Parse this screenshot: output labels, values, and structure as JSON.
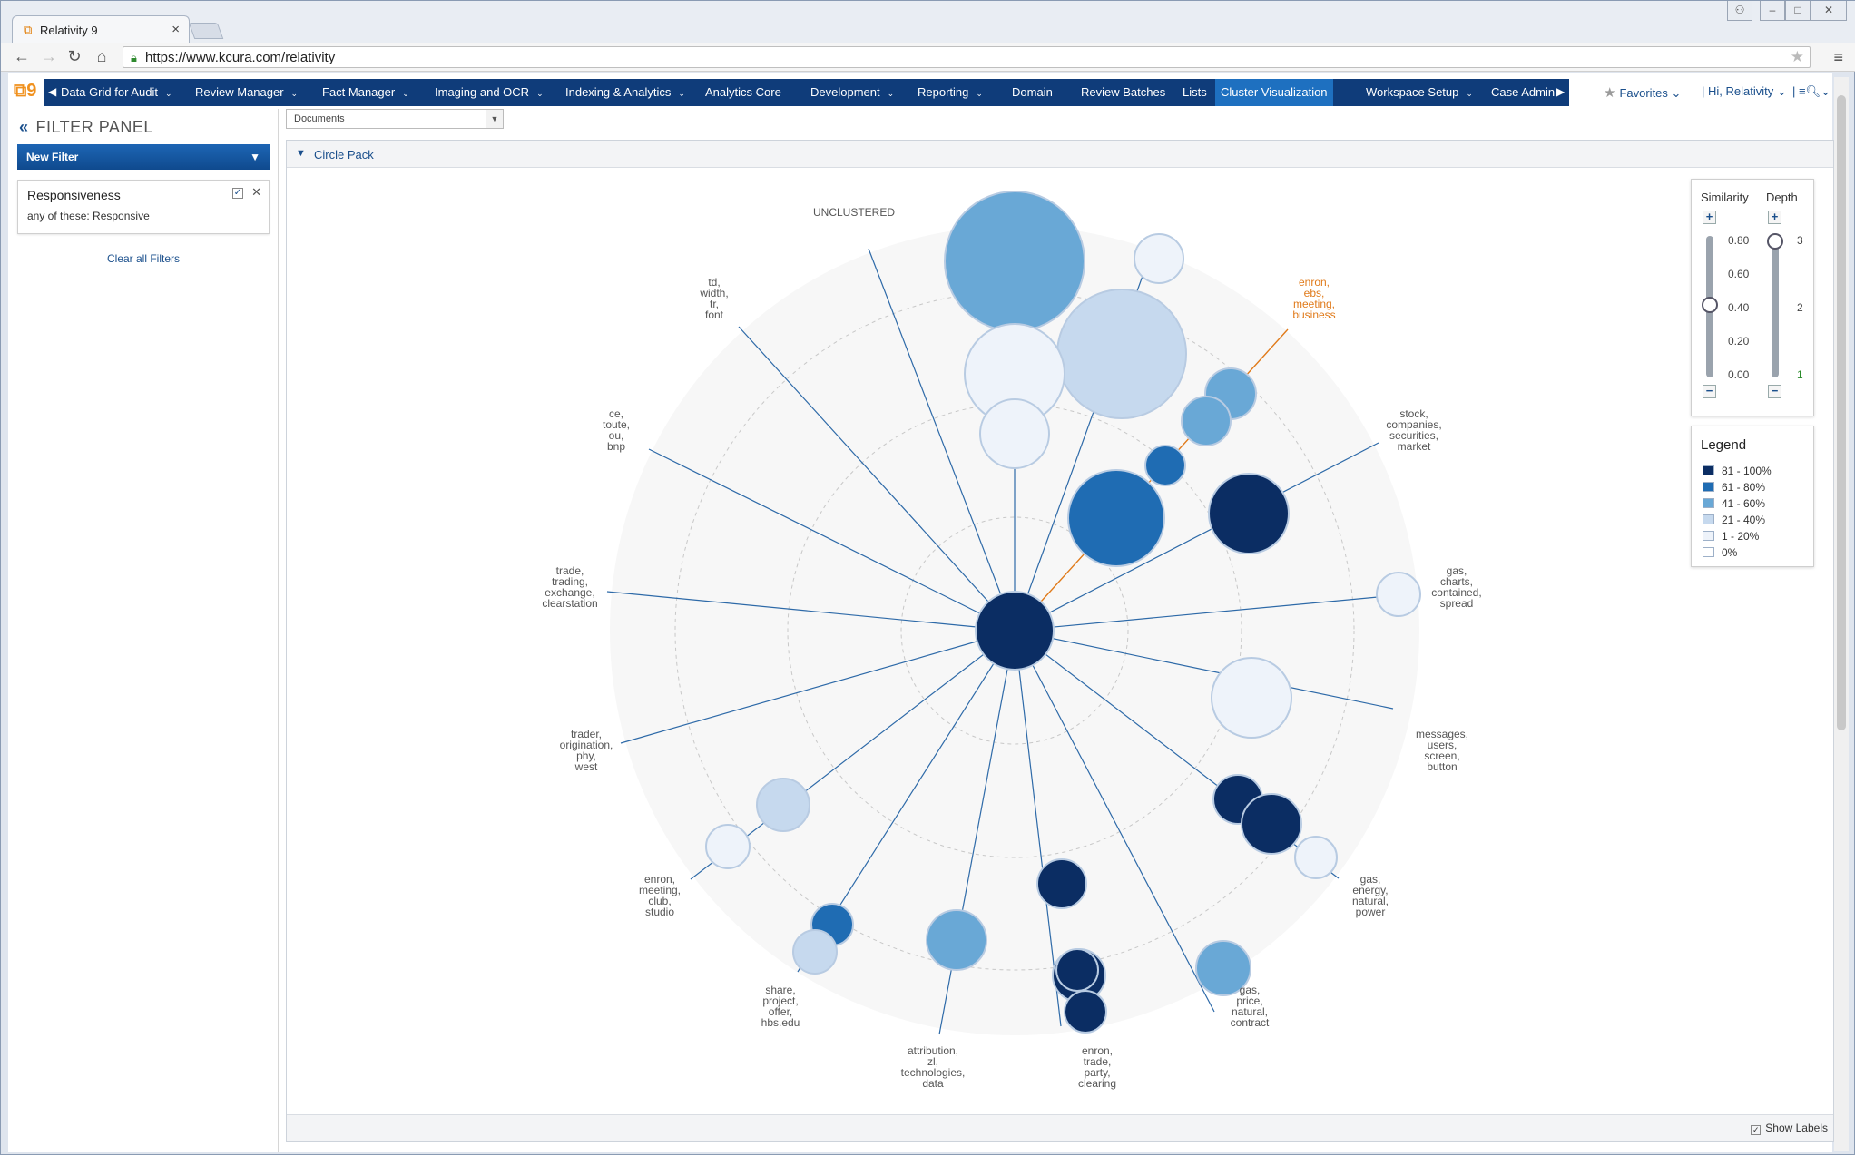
{
  "browser": {
    "tab_title": "Relativity 9",
    "url": "https://www.kcura.com/relativity"
  },
  "nav": {
    "tabs": [
      {
        "label": "Data Grid for Audit",
        "caret": true
      },
      {
        "label": "Review Manager",
        "caret": true
      },
      {
        "label": "Fact Manager",
        "caret": true
      },
      {
        "label": "Imaging and OCR",
        "caret": true
      },
      {
        "label": "Indexing & Analytics",
        "caret": true
      },
      {
        "label": "Analytics Core",
        "caret": false
      },
      {
        "label": "Development",
        "caret": true
      },
      {
        "label": "Reporting",
        "caret": true
      },
      {
        "label": "Domain",
        "caret": false
      },
      {
        "label": "Review Batches",
        "caret": false
      },
      {
        "label": "Lists",
        "caret": false
      },
      {
        "label": "Cluster Visualization",
        "caret": false,
        "active": true
      },
      {
        "label": "Workspace Setup",
        "caret": true
      },
      {
        "label": "Case Admin",
        "caret": false
      }
    ],
    "favorites": "Favorites",
    "greeting": "Hi, Relativity"
  },
  "filter_panel": {
    "title": "FILTER PANEL",
    "new_filter": "New Filter",
    "filter": {
      "name": "Responsiveness",
      "description": "any of these: Responsive"
    },
    "clear_all": "Clear all Filters"
  },
  "main": {
    "doc_select": "Documents",
    "panel_title": "Circle Pack",
    "show_labels": "Show Labels"
  },
  "controls": {
    "similarity_label": "Similarity",
    "depth_label": "Depth",
    "similarity_ticks": [
      "0.80",
      "0.60",
      "0.40",
      "0.20",
      "0.00"
    ],
    "similarity_value": 0.4,
    "depth_ticks": [
      "3",
      "2",
      "1"
    ],
    "depth_value": 3
  },
  "legend": {
    "title": "Legend",
    "items": [
      {
        "label": "81 - 100%",
        "color": "#0b2d63"
      },
      {
        "label": "61 - 80%",
        "color": "#1f6cb3"
      },
      {
        "label": "41 - 60%",
        "color": "#69a8d6"
      },
      {
        "label": "21 - 40%",
        "color": "#c6d9ee"
      },
      {
        "label": "1 - 20%",
        "color": "#eef3fa"
      },
      {
        "label": "0%",
        "color": "#ffffff"
      }
    ]
  },
  "clusters": {
    "labels": [
      {
        "id": "unclustered",
        "text": "UNCLUSTERED"
      },
      {
        "id": "c1",
        "lines": [
          "td,",
          "width,",
          "tr,",
          "font"
        ]
      },
      {
        "id": "c2",
        "lines": [
          "enron,",
          "ebs,",
          "meeting,",
          "business"
        ],
        "highlight": true
      },
      {
        "id": "c3",
        "lines": [
          "ce,",
          "toute,",
          "ou,",
          "bnp"
        ]
      },
      {
        "id": "c4",
        "lines": [
          "stock,",
          "companies,",
          "securities,",
          "market"
        ]
      },
      {
        "id": "c5",
        "lines": [
          "trade,",
          "trading,",
          "exchange,",
          "clearstation"
        ]
      },
      {
        "id": "c6",
        "lines": [
          "gas,",
          "charts,",
          "contained,",
          "spread"
        ]
      },
      {
        "id": "c7",
        "lines": [
          "trader,",
          "origination,",
          "phy,",
          "west"
        ]
      },
      {
        "id": "c8",
        "lines": [
          "messages,",
          "users,",
          "screen,",
          "button"
        ]
      },
      {
        "id": "c9",
        "lines": [
          "enron,",
          "meeting,",
          "club,",
          "studio"
        ]
      },
      {
        "id": "c10",
        "lines": [
          "gas,",
          "energy,",
          "natural,",
          "power"
        ]
      },
      {
        "id": "c11",
        "lines": [
          "share,",
          "project,",
          "offer,",
          "hbs.edu"
        ]
      },
      {
        "id": "c12",
        "lines": [
          "gas,",
          "price,",
          "natural,",
          "contract"
        ]
      },
      {
        "id": "c13",
        "lines": [
          "attribution,",
          "zl,",
          "technologies,",
          "data"
        ]
      },
      {
        "id": "c14",
        "lines": [
          "enron,",
          "trade,",
          "party,",
          "clearing"
        ]
      }
    ],
    "highlight_color": "#e07a1a"
  }
}
